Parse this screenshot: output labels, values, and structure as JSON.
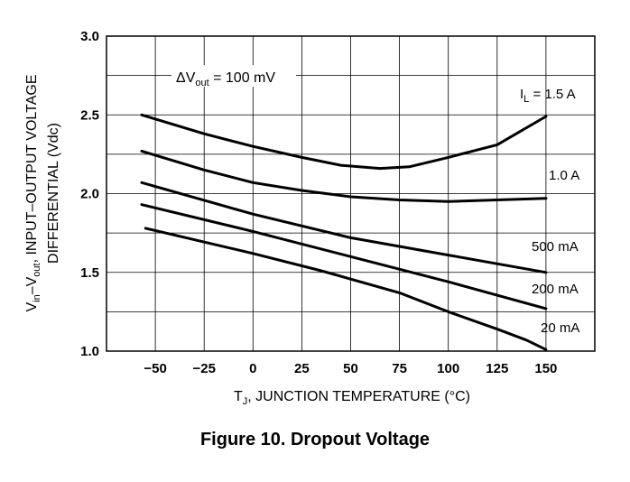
{
  "figure_caption": "Figure 10. Dropout Voltage",
  "chart_data": {
    "type": "line",
    "title": "",
    "xlabel": {
      "prefix": "T",
      "sub": "J",
      "suffix": ", JUNCTION TEMPERATURE (°C)"
    },
    "ylabel_line1": {
      "p1": "V",
      "s1": "in",
      "p2": "–V",
      "s2": "out",
      "p3": ", INPUT–OUTPUT VOLTAGE"
    },
    "ylabel_line2": "DIFFERENTIAL (Vdc)",
    "xlim": [
      -75,
      175
    ],
    "ylim": [
      1.0,
      3.0
    ],
    "grid": true,
    "x_ticks": [
      -50,
      -25,
      0,
      25,
      50,
      75,
      100,
      125,
      150
    ],
    "x_tick_labels": [
      "−50",
      "−25",
      "0",
      "25",
      "50",
      "75",
      "100",
      "125",
      "150"
    ],
    "y_ticks": [
      1.0,
      1.5,
      2.0,
      2.5,
      3.0
    ],
    "y_tick_labels": [
      "1.0",
      "1.5",
      "2.0",
      "2.5",
      "3.0"
    ],
    "y_minor_grid": [
      1.25,
      1.75,
      2.25,
      2.75
    ],
    "annotation": {
      "prefix": "ΔV",
      "sub": "out",
      "suffix": " = 100 mV"
    },
    "series": [
      {
        "name": "I_L = 1.5 A",
        "label": {
          "prefix": "I",
          "sub": "L",
          "suffix": " = 1.5 A"
        },
        "x": [
          -57,
          -25,
          0,
          25,
          45,
          65,
          80,
          100,
          125,
          150
        ],
        "y": [
          2.5,
          2.38,
          2.3,
          2.23,
          2.18,
          2.16,
          2.17,
          2.23,
          2.31,
          2.49
        ]
      },
      {
        "name": "1.0 A",
        "label": {
          "prefix": "1.0 A",
          "sub": "",
          "suffix": ""
        },
        "x": [
          -57,
          -25,
          0,
          25,
          50,
          75,
          100,
          125,
          150
        ],
        "y": [
          2.27,
          2.15,
          2.07,
          2.02,
          1.98,
          1.96,
          1.95,
          1.96,
          1.97
        ]
      },
      {
        "name": "500 mA",
        "label": {
          "prefix": "500 mA",
          "sub": "",
          "suffix": ""
        },
        "x": [
          -57,
          0,
          50,
          100,
          150
        ],
        "y": [
          2.07,
          1.87,
          1.72,
          1.61,
          1.5
        ]
      },
      {
        "name": "200 mA",
        "label": {
          "prefix": "200 mA",
          "sub": "",
          "suffix": ""
        },
        "x": [
          -57,
          0,
          50,
          100,
          150
        ],
        "y": [
          1.93,
          1.76,
          1.6,
          1.44,
          1.27
        ]
      },
      {
        "name": "20 mA",
        "label": {
          "prefix": "20 mA",
          "sub": "",
          "suffix": ""
        },
        "x": [
          -55,
          0,
          35,
          75,
          100,
          125,
          140,
          150
        ],
        "y": [
          1.78,
          1.62,
          1.51,
          1.37,
          1.25,
          1.14,
          1.07,
          1.01
        ]
      }
    ]
  }
}
